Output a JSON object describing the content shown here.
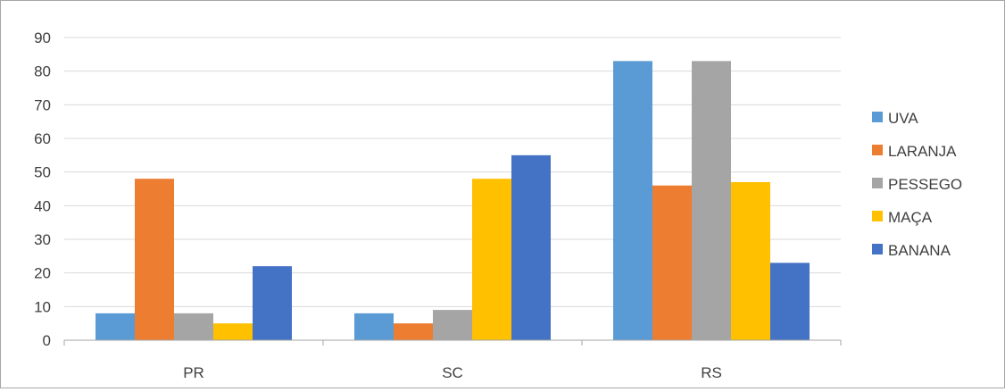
{
  "chart_data": {
    "type": "bar",
    "categories": [
      "PR",
      "SC",
      "RS"
    ],
    "series": [
      {
        "name": "UVA",
        "color": "#5b9bd5",
        "values": [
          8,
          8,
          83
        ]
      },
      {
        "name": "LARANJA",
        "color": "#ed7d31",
        "values": [
          48,
          5,
          46
        ]
      },
      {
        "name": "PESSEGO",
        "color": "#a5a5a5",
        "values": [
          8,
          9,
          83
        ]
      },
      {
        "name": "MAÇA",
        "color": "#ffc000",
        "values": [
          5,
          48,
          47
        ]
      },
      {
        "name": "BANANA",
        "color": "#4472c4",
        "values": [
          22,
          55,
          23
        ]
      }
    ],
    "ylim": [
      0,
      90
    ],
    "yticks": [
      "0",
      "10",
      "20",
      "30",
      "40",
      "50",
      "60",
      "70",
      "80",
      "90"
    ],
    "grid": true,
    "legend_position": "right",
    "gridline_color": "#d9d9d9",
    "axis_color": "#a6a6a6"
  }
}
